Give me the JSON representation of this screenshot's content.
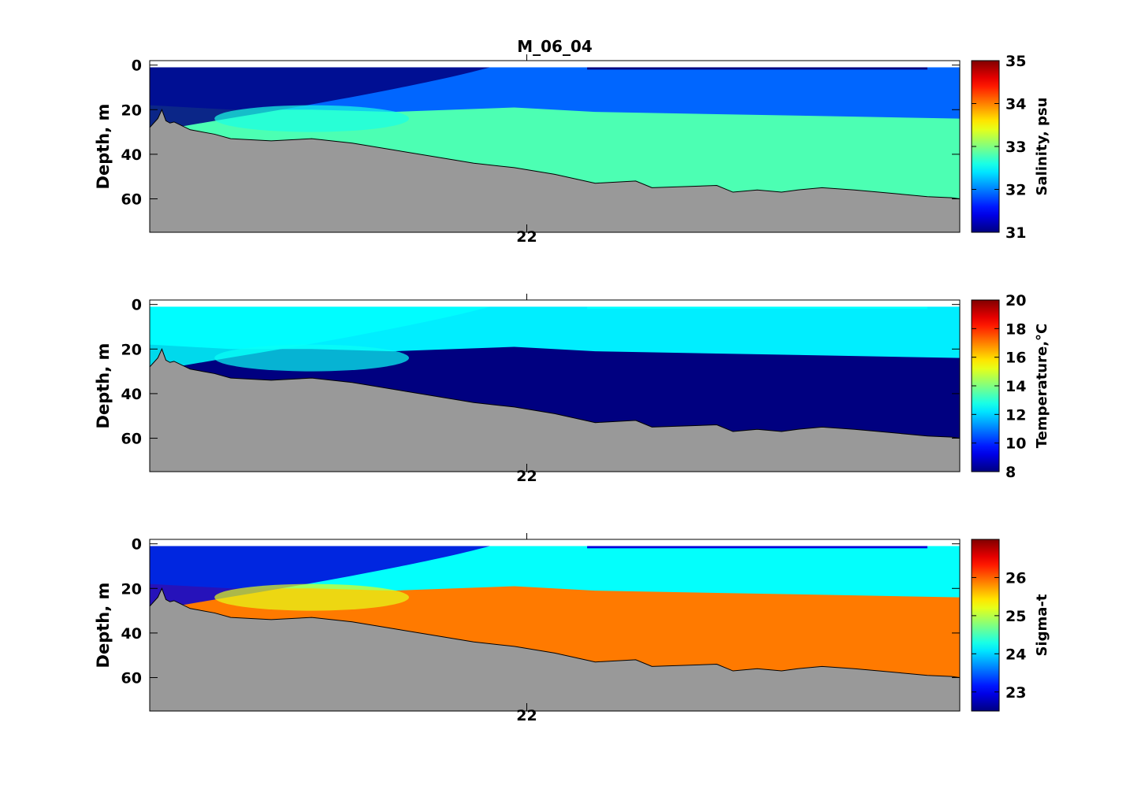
{
  "figure": {
    "title": "M_06_04"
  },
  "chart_data": [
    {
      "type": "heatmap",
      "title": "M_06_04",
      "ylabel": "Depth, m",
      "y_ticks": [
        0,
        20,
        40,
        60
      ],
      "ylim": [
        75,
        -2
      ],
      "x_ticks": [
        "22"
      ],
      "colorbar": {
        "label": "Salinity, psu",
        "min": 31,
        "max": 35,
        "ticks": [
          31,
          32,
          33,
          34,
          35
        ]
      },
      "layers": {
        "surface": 31.0,
        "mixed": 31.9,
        "deep": 32.8,
        "bloom": 32.6
      }
    },
    {
      "type": "heatmap",
      "ylabel": "Depth, m",
      "y_ticks": [
        0,
        20,
        40,
        60
      ],
      "ylim": [
        75,
        -2
      ],
      "x_ticks": [
        "22"
      ],
      "colorbar": {
        "label": "Temperature,°C",
        "min": 8,
        "max": 20,
        "ticks": [
          8,
          10,
          12,
          14,
          16,
          18,
          20
        ]
      },
      "layers": {
        "surface": 12.5,
        "mixed": 12.3,
        "deep": 8.0,
        "bloom": 12.6
      }
    },
    {
      "type": "heatmap",
      "ylabel": "Depth, m",
      "y_ticks": [
        0,
        20,
        40,
        60
      ],
      "ylim": [
        75,
        -2
      ],
      "x_ticks": [
        "22"
      ],
      "colorbar": {
        "label": "Sigma-t",
        "min": 22.5,
        "max": 27,
        "ticks": [
          23,
          24,
          25,
          26
        ]
      },
      "layers": {
        "surface": 22.9,
        "mixed": 24.2,
        "deep": 25.9,
        "bloom": 25.2
      }
    }
  ],
  "bathymetry": {
    "x": [
      0,
      0.01,
      0.015,
      0.02,
      0.025,
      0.03,
      0.05,
      0.08,
      0.1,
      0.15,
      0.2,
      0.25,
      0.3,
      0.35,
      0.4,
      0.45,
      0.5,
      0.55,
      0.6,
      0.62,
      0.7,
      0.72,
      0.75,
      0.78,
      0.8,
      0.83,
      0.87,
      0.9,
      0.93,
      0.96,
      0.99,
      1.0
    ],
    "depth": [
      28,
      24,
      20,
      25,
      26,
      25.5,
      29,
      31,
      33,
      34,
      33,
      35,
      38,
      41,
      44,
      46,
      49,
      53,
      52,
      55,
      54,
      57,
      56,
      57,
      56,
      55,
      56,
      57,
      58,
      59,
      59.5,
      60
    ]
  }
}
